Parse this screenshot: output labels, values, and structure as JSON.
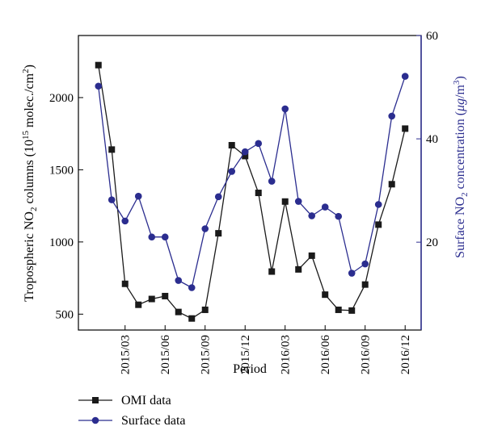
{
  "chart_data": {
    "type": "line",
    "xlabel": "Period",
    "ylabel_left": {
      "main": "Tropospheric NO",
      "sub1": "2",
      "mid": " columns (10",
      "sup1": "15",
      "tail": " molec./cm",
      "sup2": "2",
      "end": ")"
    },
    "ylabel_right": {
      "main": "Surface NO",
      "sub1": "2",
      "mid": " concentration (",
      "mu": "μg",
      "slash": "/m",
      "sup": "3",
      "end": ")"
    },
    "x": [
      "2015/01",
      "2015/02",
      "2015/03",
      "2015/04",
      "2015/05",
      "2015/06",
      "2015/07",
      "2015/08",
      "2015/09",
      "2015/10",
      "2015/11",
      "2015/12",
      "2016/01",
      "2016/02",
      "2016/03",
      "2016/04",
      "2016/05",
      "2016/06",
      "2016/07",
      "2016/08",
      "2016/09",
      "2016/10",
      "2016/11",
      "2016/12"
    ],
    "xtick_labels": [
      "2015/03",
      "2015/06",
      "2015/09",
      "2015/12",
      "2016/03",
      "2016/06",
      "2016/09",
      "2016/12"
    ],
    "xtick_indices": [
      2,
      5,
      8,
      11,
      14,
      17,
      20,
      23
    ],
    "xlim": [
      -1.5,
      24.2
    ],
    "y_left": {
      "lim": [
        390,
        2430
      ],
      "ticks": [
        500,
        1000,
        1500,
        2000
      ],
      "tick_labels": [
        "500",
        "1000",
        "1500",
        "2000"
      ]
    },
    "y_right": {
      "lim": [
        3,
        60
      ],
      "ticks": [
        20,
        40,
        60
      ],
      "tick_labels": [
        "20",
        "40",
        "60"
      ],
      "color": "#2b2d8f"
    },
    "series": [
      {
        "name": "OMI data",
        "axis": "left",
        "marker": "square",
        "color": "#1a1a1a",
        "values": [
          2225,
          1640,
          710,
          565,
          605,
          625,
          515,
          470,
          530,
          1060,
          1670,
          1595,
          1340,
          795,
          1280,
          810,
          905,
          635,
          530,
          525,
          705,
          1120,
          1400,
          1785
        ]
      },
      {
        "name": "Surface data",
        "axis": "right",
        "marker": "circle",
        "color": "#2b2d8f",
        "values": [
          50.2,
          28.2,
          24.1,
          28.9,
          21.0,
          21.0,
          12.6,
          11.2,
          22.6,
          28.8,
          33.7,
          37.5,
          39.1,
          31.8,
          45.8,
          27.9,
          25.1,
          26.8,
          25.0,
          14.0,
          15.8,
          27.3,
          44.4,
          52.1
        ]
      }
    ],
    "legend": {
      "position": "bottom-left",
      "entries": [
        "OMI data",
        "Surface data"
      ]
    }
  }
}
